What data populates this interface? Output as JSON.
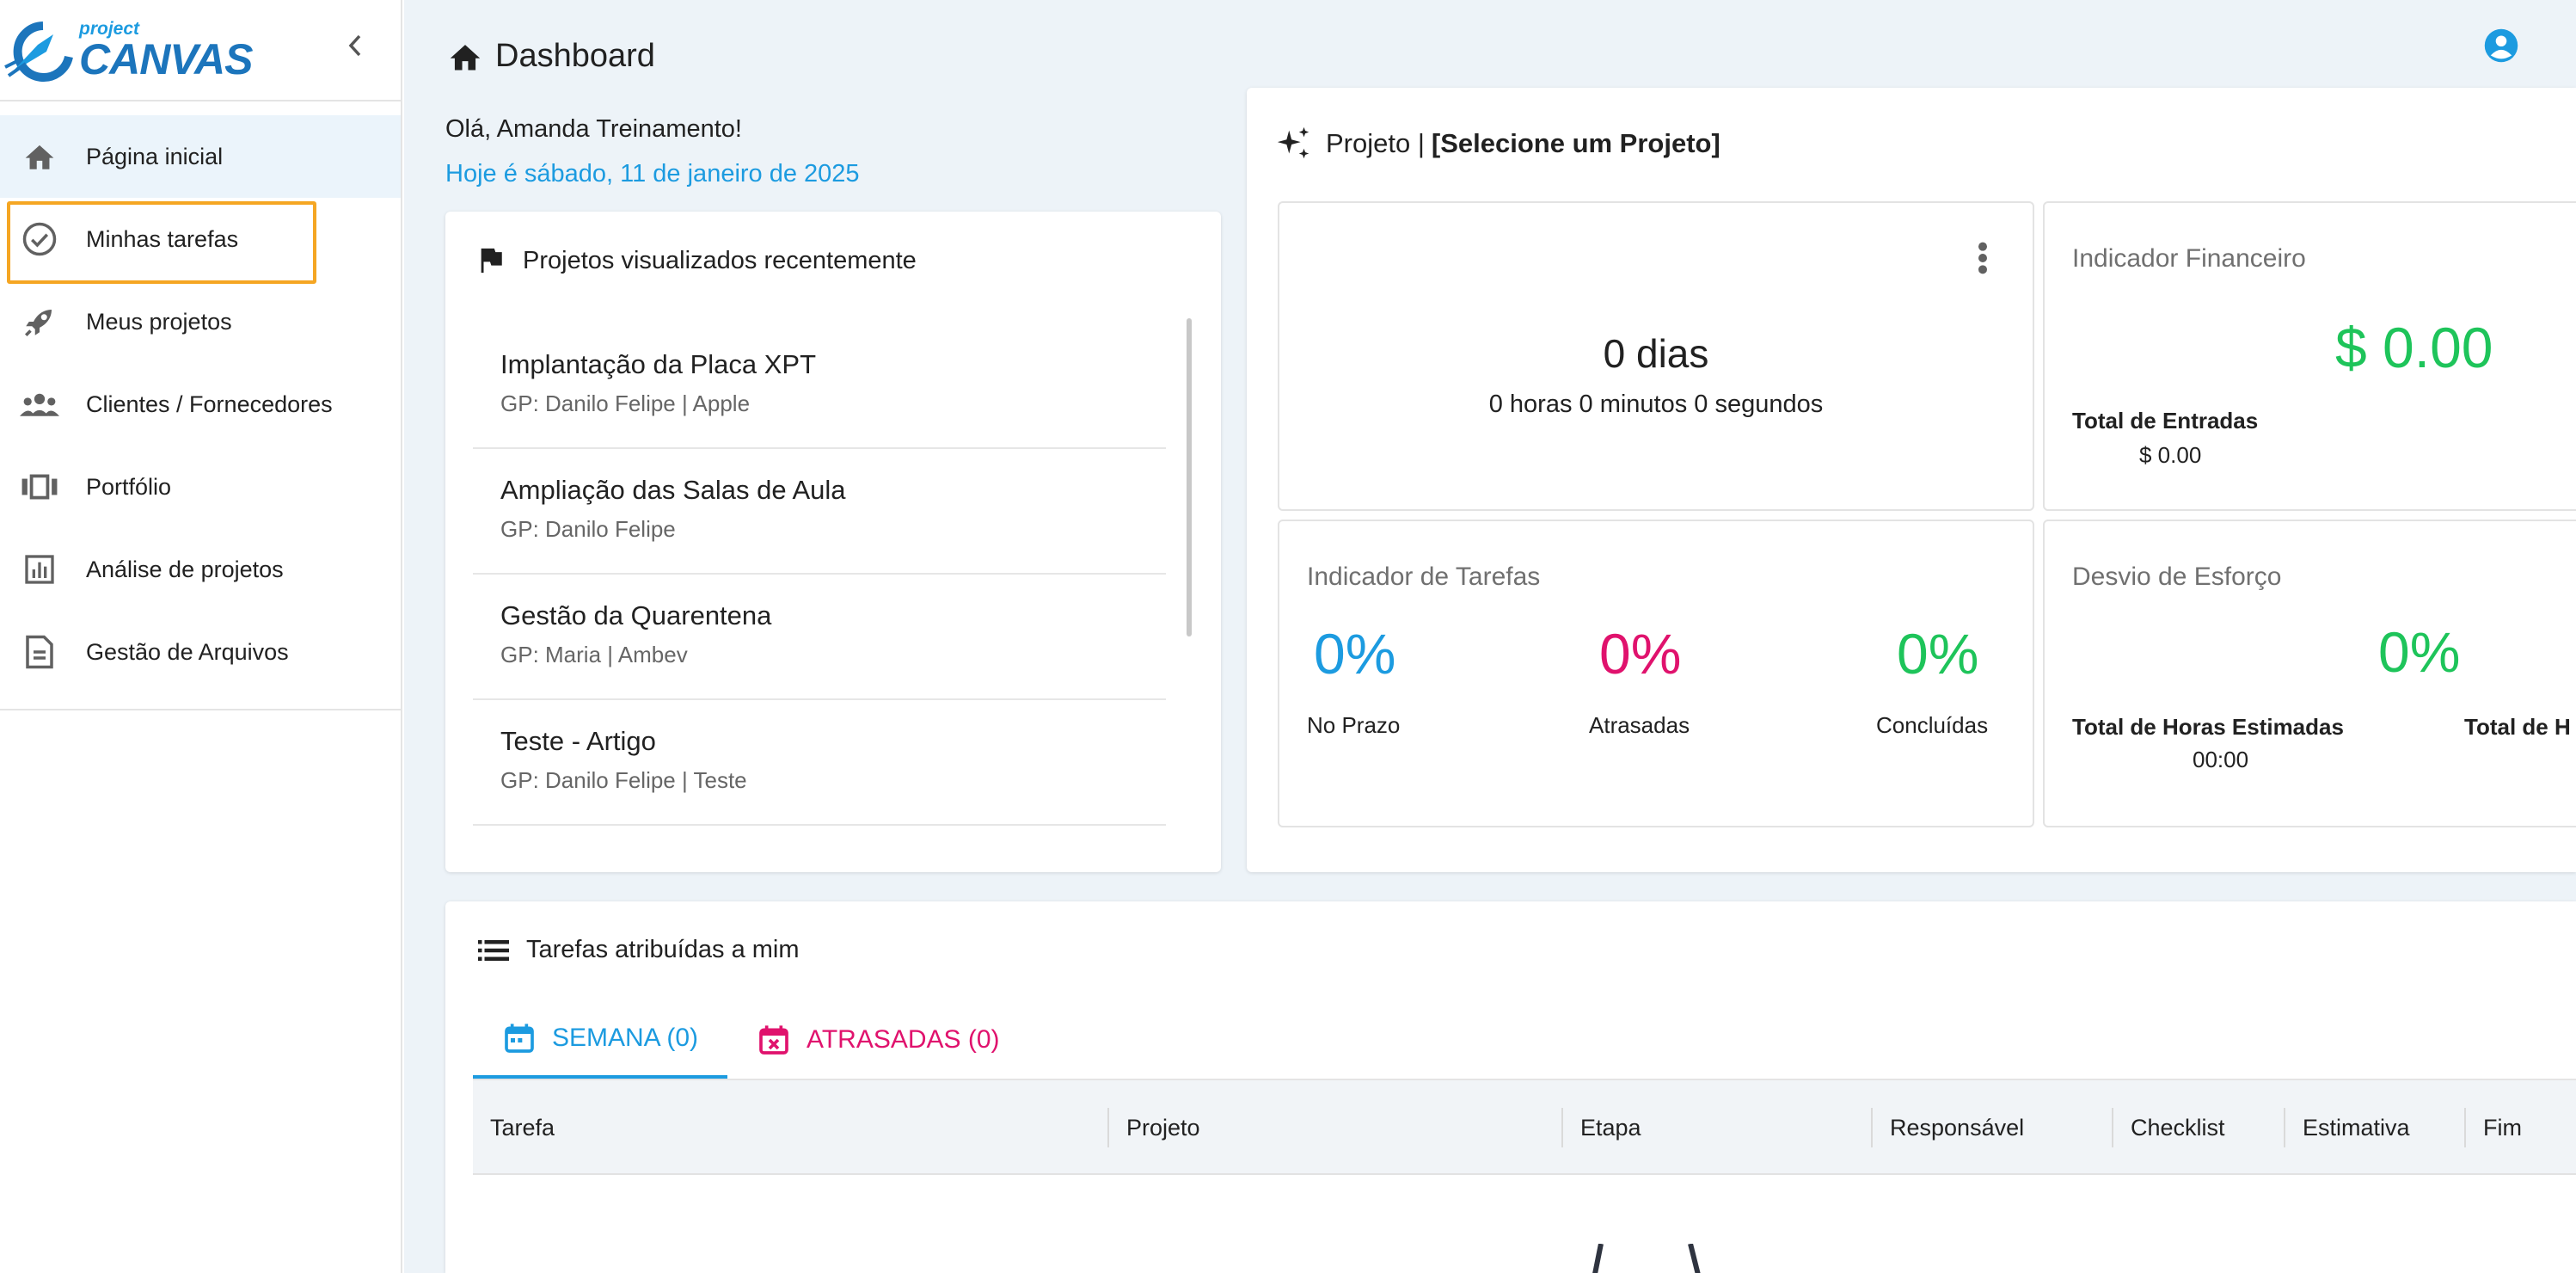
{
  "brand": {
    "small": "project",
    "big": "CANVAS"
  },
  "sidebar": {
    "items": [
      {
        "label": "Página inicial",
        "icon": "home-icon"
      },
      {
        "label": "Minhas tarefas",
        "icon": "check-circle-icon"
      },
      {
        "label": "Meus projetos",
        "icon": "rocket-icon"
      },
      {
        "label": "Clientes / Fornecedores",
        "icon": "people-icon"
      },
      {
        "label": "Portfólio",
        "icon": "carousel-icon"
      },
      {
        "label": "Análise de projetos",
        "icon": "bar-chart-icon"
      },
      {
        "label": "Gestão de Arquivos",
        "icon": "file-icon"
      }
    ]
  },
  "header": {
    "title": "Dashboard"
  },
  "greeting": "Olá, Amanda Treinamento!",
  "date_text": "Hoje é sábado, 11 de janeiro de 2025",
  "recent": {
    "title": "Projetos visualizados recentemente",
    "items": [
      {
        "name": "Implantação da Placa XPT",
        "gp": "GP: Danilo Felipe | Apple"
      },
      {
        "name": "Ampliação das Salas de Aula",
        "gp": "GP: Danilo Felipe"
      },
      {
        "name": "Gestão da Quarentena",
        "gp": "GP: Maria | Ambev"
      },
      {
        "name": "Teste - Artigo",
        "gp": "GP: Danilo Felipe | Teste"
      }
    ]
  },
  "project": {
    "label": "Projeto |",
    "selected": "[Selecione um Projeto]",
    "time": {
      "days": "0 dias",
      "detail": "0 horas 0 minutos 0 segundos"
    },
    "financeiro": {
      "title": "Indicador Financeiro",
      "value": "$ 0.00",
      "label": "Total de Entradas",
      "sub": "$ 0.00"
    },
    "tarefas": {
      "title": "Indicador de Tarefas",
      "items": [
        {
          "value": "0%",
          "label": "No Prazo",
          "color": "#1c9be0"
        },
        {
          "value": "0%",
          "label": "Atrasadas",
          "color": "#e0126d"
        },
        {
          "value": "0%",
          "label": "Concluídas",
          "color": "#1ec45a"
        }
      ]
    },
    "esforco": {
      "title": "Desvio de Esforço",
      "value": "0%",
      "label1": "Total de Horas Estimadas",
      "label2": "Total de H",
      "sub": "00:00"
    }
  },
  "tasks": {
    "title": "Tarefas atribuídas a mim",
    "tabs": [
      {
        "label": "SEMANA (0)"
      },
      {
        "label": "ATRASADAS (0)"
      }
    ],
    "columns": [
      "Tarefa",
      "Projeto",
      "Etapa",
      "Responsável",
      "Checklist",
      "Estimativa",
      "Fim"
    ]
  },
  "colors": {
    "blue": "#1c9be0",
    "pink": "#e0126d",
    "green": "#1ec45a",
    "highlight": "#f5a623"
  }
}
